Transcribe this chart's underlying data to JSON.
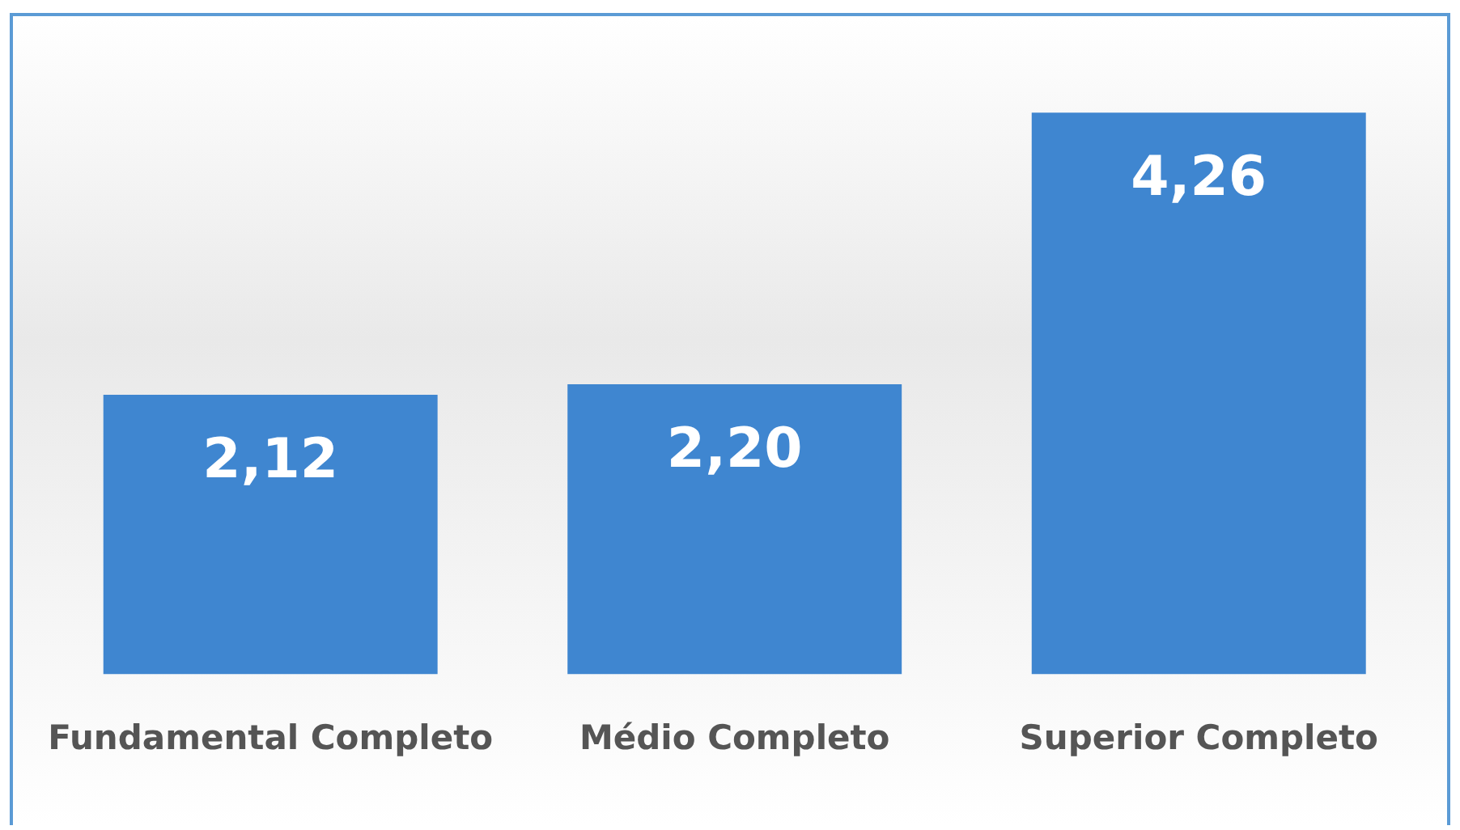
{
  "chart_data": {
    "type": "bar",
    "categories": [
      "Fundamental Completo",
      "Médio Completo",
      "Superior Completo"
    ],
    "values": [
      2.12,
      2.2,
      4.26
    ],
    "value_labels": [
      "2,12",
      "2,20",
      "4,26"
    ],
    "color": "#3f86d0",
    "grid": false,
    "legend": false
  }
}
